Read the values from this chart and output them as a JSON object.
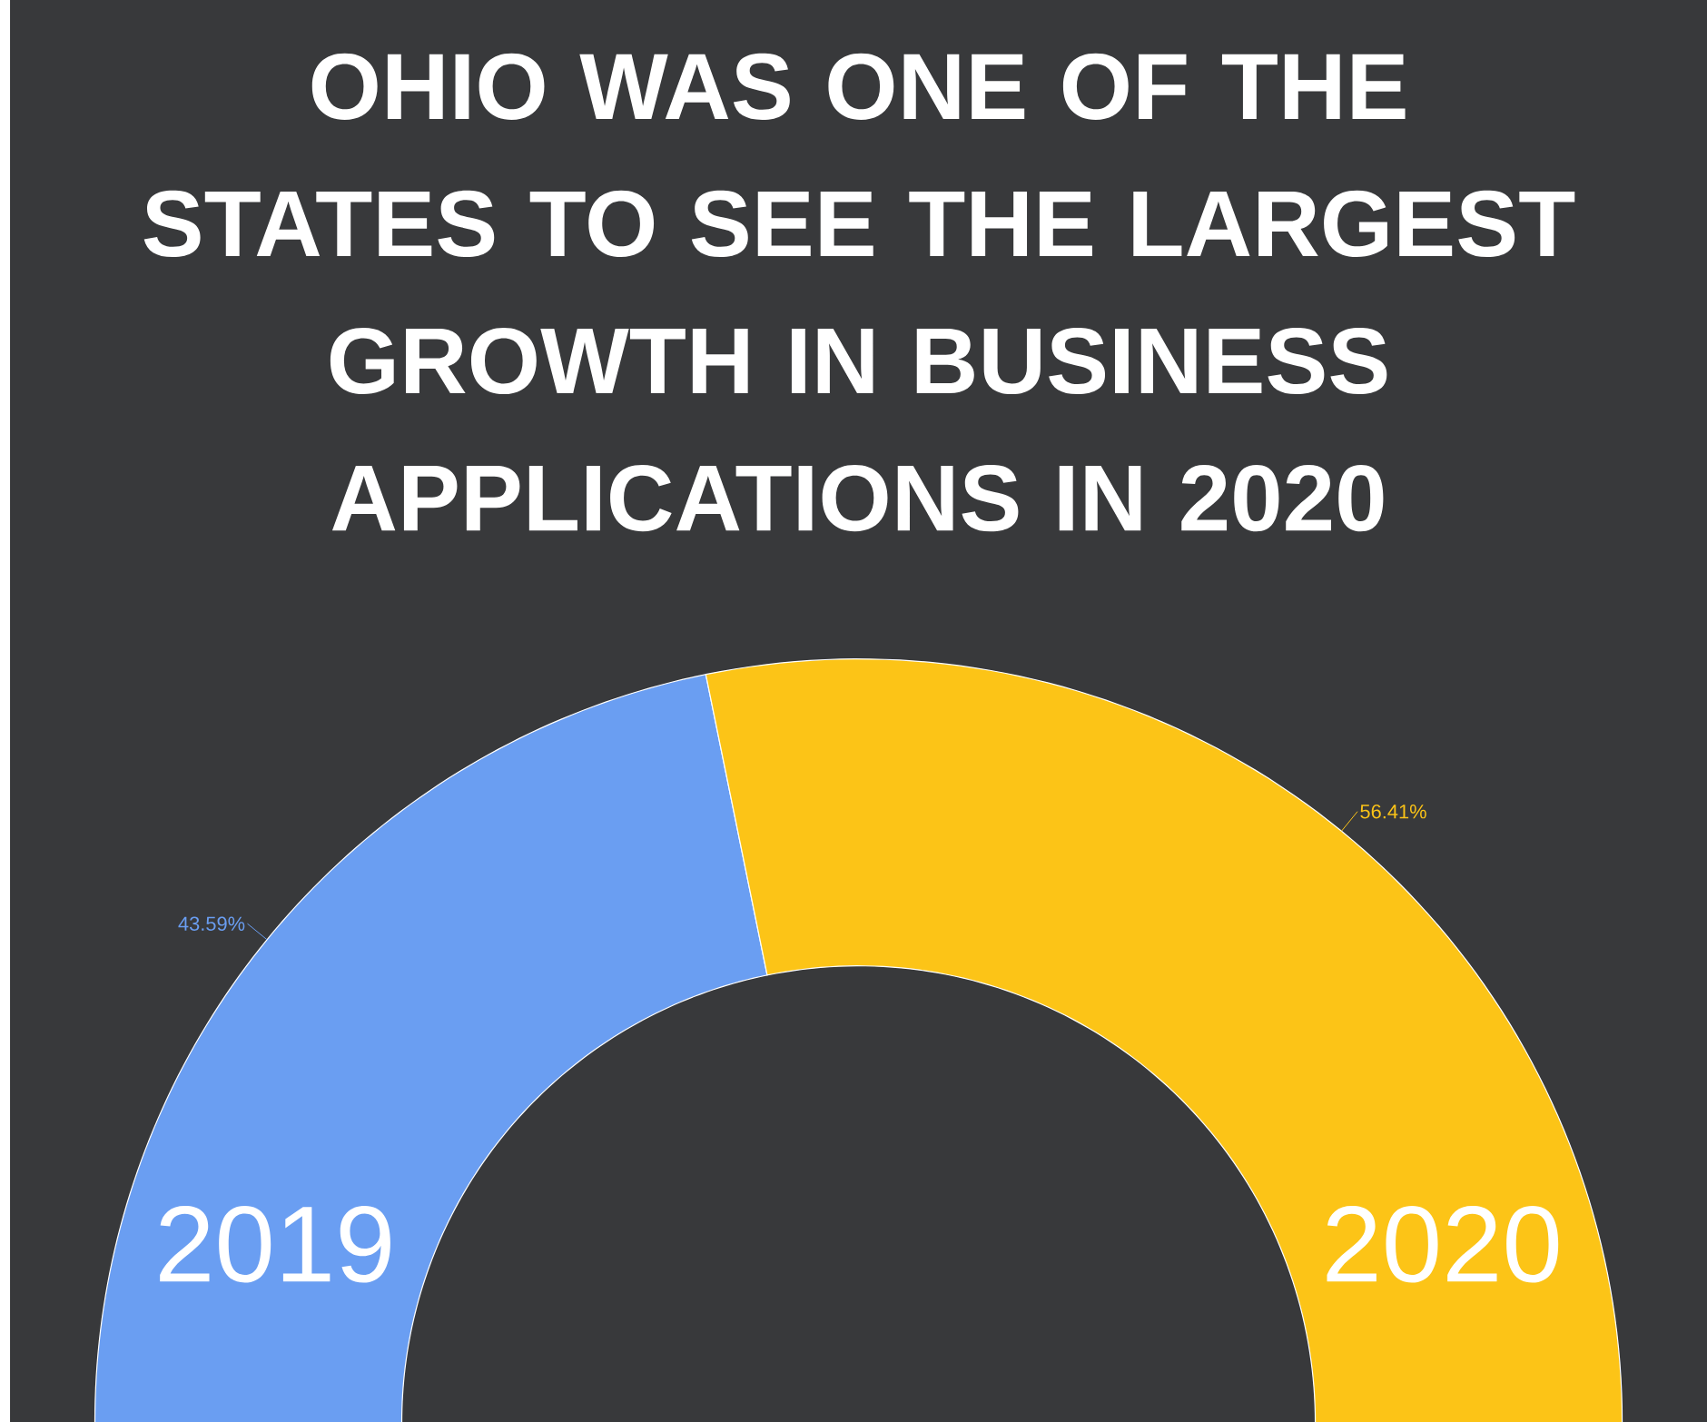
{
  "chart_data": {
    "type": "donut",
    "title": "OHIO WAS ONE OF THE STATES TO SEE THE LARGEST GROWTH IN BUSINESS APPLICATIONS IN 2020",
    "categories": [
      "2019",
      "2020"
    ],
    "values": [
      43.59,
      56.41
    ],
    "colors": [
      "#6a9ef2",
      "#fcc417"
    ],
    "value_labels": [
      "43.59%",
      "56.41%"
    ]
  }
}
